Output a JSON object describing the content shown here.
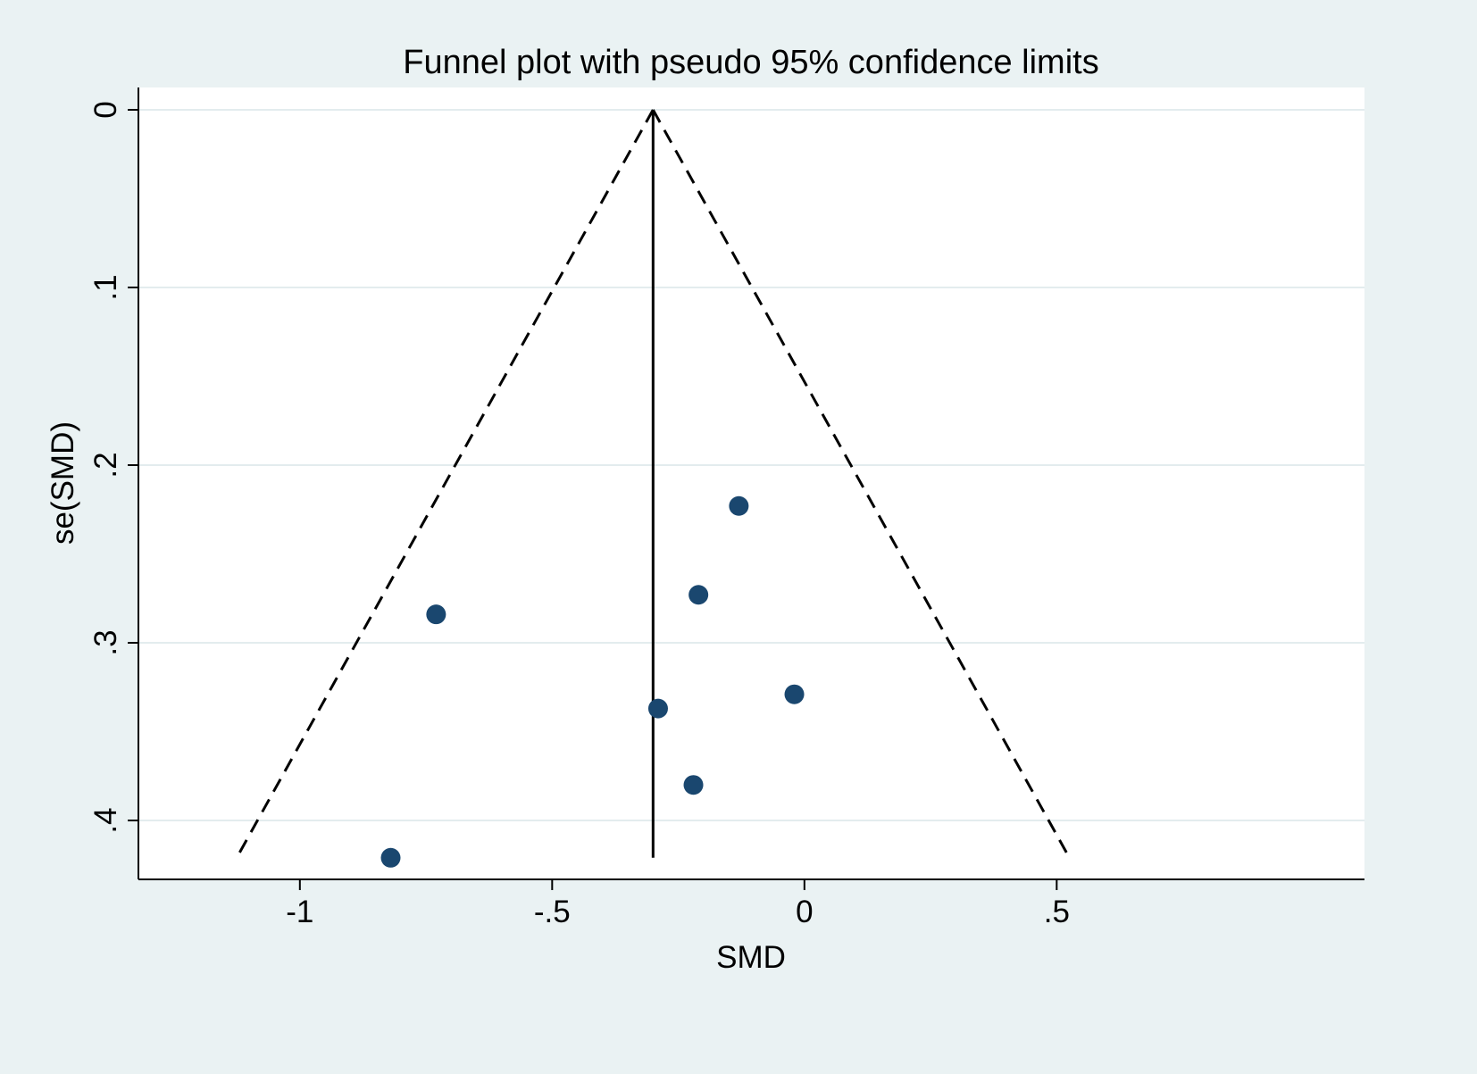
{
  "colors": {
    "background": "#eaf2f3",
    "plot_background": "#ffffff",
    "gridline": "#e3ecee",
    "axis": "#000000",
    "marker": "#1a476f"
  },
  "chart_data": {
    "type": "scatter",
    "title": "Funnel plot with pseudo 95% confidence limits",
    "xlabel": "SMD",
    "ylabel": "se(SMD)",
    "xlim": [
      -1.32,
      1.11
    ],
    "ylim": [
      0,
      0.433
    ],
    "y_reversed": true,
    "grid": "horizontal",
    "x_ticks": [
      {
        "value": -1,
        "label": "-1"
      },
      {
        "value": -0.5,
        "label": "-.5"
      },
      {
        "value": 0,
        "label": "0"
      },
      {
        "value": 0.5,
        "label": ".5"
      }
    ],
    "y_ticks": [
      {
        "value": 0,
        "label": "0"
      },
      {
        "value": 0.1,
        "label": ".1"
      },
      {
        "value": 0.2,
        "label": ".2"
      },
      {
        "value": 0.3,
        "label": ".3"
      },
      {
        "value": 0.4,
        "label": ".4"
      }
    ],
    "pooled_effect": -0.3,
    "max_se": 0.421,
    "ci_multiplier": 1.96,
    "points": [
      {
        "x": -0.13,
        "y": 0.223
      },
      {
        "x": -0.21,
        "y": 0.273
      },
      {
        "x": -0.73,
        "y": 0.284
      },
      {
        "x": -0.02,
        "y": 0.329
      },
      {
        "x": -0.29,
        "y": 0.337
      },
      {
        "x": -0.22,
        "y": 0.38
      },
      {
        "x": -0.82,
        "y": 0.421
      }
    ]
  }
}
